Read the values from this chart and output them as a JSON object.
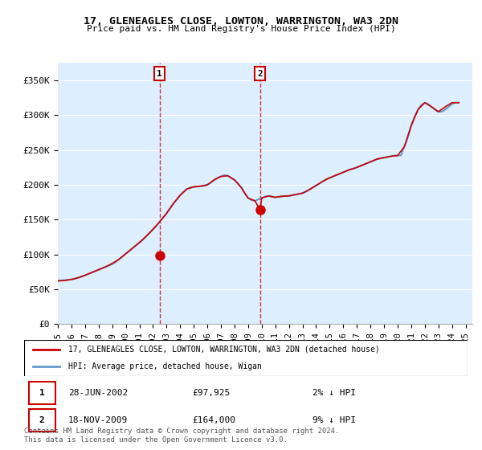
{
  "title": "17, GLENEAGLES CLOSE, LOWTON, WARRINGTON, WA3 2DN",
  "subtitle": "Price paid vs. HM Land Registry's House Price Index (HPI)",
  "ylabel_ticks": [
    "£0",
    "£50K",
    "£100K",
    "£150K",
    "£200K",
    "£250K",
    "£300K",
    "£350K"
  ],
  "ytick_values": [
    0,
    50000,
    100000,
    150000,
    200000,
    250000,
    300000,
    350000
  ],
  "ylim": [
    0,
    375000
  ],
  "xlim_start": 1995.0,
  "xlim_end": 2025.5,
  "xticks": [
    1995,
    1996,
    1997,
    1998,
    1999,
    2000,
    2001,
    2002,
    2003,
    2004,
    2005,
    2006,
    2007,
    2008,
    2009,
    2010,
    2011,
    2012,
    2013,
    2014,
    2015,
    2016,
    2017,
    2018,
    2019,
    2020,
    2021,
    2022,
    2023,
    2024,
    2025
  ],
  "hpi_color": "#6699cc",
  "property_color": "#cc0000",
  "bg_color": "#ddeeff",
  "plot_bg": "#ddeeff",
  "grid_color": "#ffffff",
  "sale1_x": 2002.49,
  "sale1_y": 97925,
  "sale1_label": "1",
  "sale1_date": "28-JUN-2002",
  "sale1_price": "£97,925",
  "sale1_hpi": "2% ↓ HPI",
  "sale2_x": 2009.88,
  "sale2_y": 164000,
  "sale2_label": "2",
  "sale2_date": "18-NOV-2009",
  "sale2_price": "£164,000",
  "sale2_hpi": "9% ↓ HPI",
  "legend_line1": "17, GLENEAGLES CLOSE, LOWTON, WARRINGTON, WA3 2DN (detached house)",
  "legend_line2": "HPI: Average price, detached house, Wigan",
  "footnote": "Contains HM Land Registry data © Crown copyright and database right 2024.\nThis data is licensed under the Open Government Licence v3.0.",
  "hpi_data_x": [
    1995.0,
    1995.25,
    1995.5,
    1995.75,
    1996.0,
    1996.25,
    1996.5,
    1996.75,
    1997.0,
    1997.25,
    1997.5,
    1997.75,
    1998.0,
    1998.25,
    1998.5,
    1998.75,
    1999.0,
    1999.25,
    1999.5,
    1999.75,
    2000.0,
    2000.25,
    2000.5,
    2000.75,
    2001.0,
    2001.25,
    2001.5,
    2001.75,
    2002.0,
    2002.25,
    2002.5,
    2002.75,
    2003.0,
    2003.25,
    2003.5,
    2003.75,
    2004.0,
    2004.25,
    2004.5,
    2004.75,
    2005.0,
    2005.25,
    2005.5,
    2005.75,
    2006.0,
    2006.25,
    2006.5,
    2006.75,
    2007.0,
    2007.25,
    2007.5,
    2007.75,
    2008.0,
    2008.25,
    2008.5,
    2008.75,
    2009.0,
    2009.25,
    2009.5,
    2009.75,
    2010.0,
    2010.25,
    2010.5,
    2010.75,
    2011.0,
    2011.25,
    2011.5,
    2011.75,
    2012.0,
    2012.25,
    2012.5,
    2012.75,
    2013.0,
    2013.25,
    2013.5,
    2013.75,
    2014.0,
    2014.25,
    2014.5,
    2014.75,
    2015.0,
    2015.25,
    2015.5,
    2015.75,
    2016.0,
    2016.25,
    2016.5,
    2016.75,
    2017.0,
    2017.25,
    2017.5,
    2017.75,
    2018.0,
    2018.25,
    2018.5,
    2018.75,
    2019.0,
    2019.25,
    2019.5,
    2019.75,
    2020.0,
    2020.25,
    2020.5,
    2020.75,
    2021.0,
    2021.25,
    2021.5,
    2021.75,
    2022.0,
    2022.25,
    2022.5,
    2022.75,
    2023.0,
    2023.25,
    2023.5,
    2023.75,
    2024.0,
    2024.25,
    2024.5
  ],
  "hpi_data_y": [
    62000,
    62500,
    63000,
    63500,
    64000,
    65000,
    66500,
    68000,
    70000,
    72000,
    74000,
    76000,
    78000,
    80000,
    82000,
    84000,
    86000,
    89000,
    93000,
    97000,
    101000,
    105000,
    109000,
    113000,
    117000,
    121000,
    126000,
    131000,
    136000,
    141000,
    147000,
    153000,
    159000,
    166000,
    173000,
    179000,
    185000,
    190000,
    194000,
    196000,
    197000,
    197500,
    198000,
    198500,
    200000,
    203000,
    207000,
    210000,
    212000,
    214000,
    213000,
    210000,
    207000,
    202000,
    196000,
    188000,
    181000,
    178000,
    177000,
    179000,
    181000,
    183000,
    184000,
    183000,
    182000,
    183000,
    183500,
    184000,
    184000,
    185000,
    186000,
    187000,
    188000,
    190000,
    193000,
    196000,
    199000,
    202000,
    205000,
    208000,
    210000,
    212000,
    214000,
    216000,
    218000,
    220000,
    222000,
    223000,
    225000,
    227000,
    229000,
    231000,
    233000,
    235000,
    237000,
    238000,
    239000,
    240000,
    241000,
    242000,
    242000,
    242500,
    255000,
    268000,
    285000,
    298000,
    308000,
    315000,
    318000,
    316000,
    312000,
    308000,
    305000,
    305000,
    308000,
    312000,
    316000,
    318000,
    318000
  ],
  "property_data_x": [
    1995.0,
    1995.5,
    1996.0,
    1996.5,
    1997.0,
    1997.5,
    1998.0,
    1998.5,
    1999.0,
    1999.5,
    2000.0,
    2000.5,
    2001.0,
    2001.5,
    2002.0,
    2002.5,
    2003.0,
    2003.5,
    2004.0,
    2004.5,
    2005.0,
    2005.5,
    2006.0,
    2006.5,
    2007.0,
    2007.5,
    2007.75,
    2008.0,
    2008.5,
    2008.75,
    2009.0,
    2009.5,
    2009.88,
    2010.0,
    2010.5,
    2011.0,
    2011.5,
    2012.0,
    2012.5,
    2013.0,
    2013.5,
    2014.0,
    2014.5,
    2015.0,
    2015.5,
    2016.0,
    2016.5,
    2017.0,
    2017.5,
    2018.0,
    2018.5,
    2019.0,
    2019.5,
    2020.0,
    2020.5,
    2021.0,
    2021.5,
    2022.0,
    2022.5,
    2023.0,
    2023.5,
    2024.0,
    2024.5
  ],
  "property_data_y": [
    62000,
    62500,
    64000,
    66500,
    70000,
    74000,
    78000,
    82000,
    87000,
    93000,
    101000,
    109000,
    117000,
    126000,
    136000,
    147000,
    159000,
    173000,
    185000,
    194000,
    197000,
    198000,
    200000,
    207000,
    212000,
    213000,
    210000,
    207000,
    196000,
    188000,
    181000,
    177000,
    164000,
    181000,
    184000,
    182000,
    183500,
    184000,
    186000,
    188000,
    193000,
    199000,
    205000,
    210000,
    214000,
    218000,
    222000,
    225000,
    229000,
    233000,
    237000,
    239000,
    241000,
    242000,
    255000,
    285000,
    308000,
    318000,
    312000,
    305000,
    312000,
    318000,
    318000
  ]
}
